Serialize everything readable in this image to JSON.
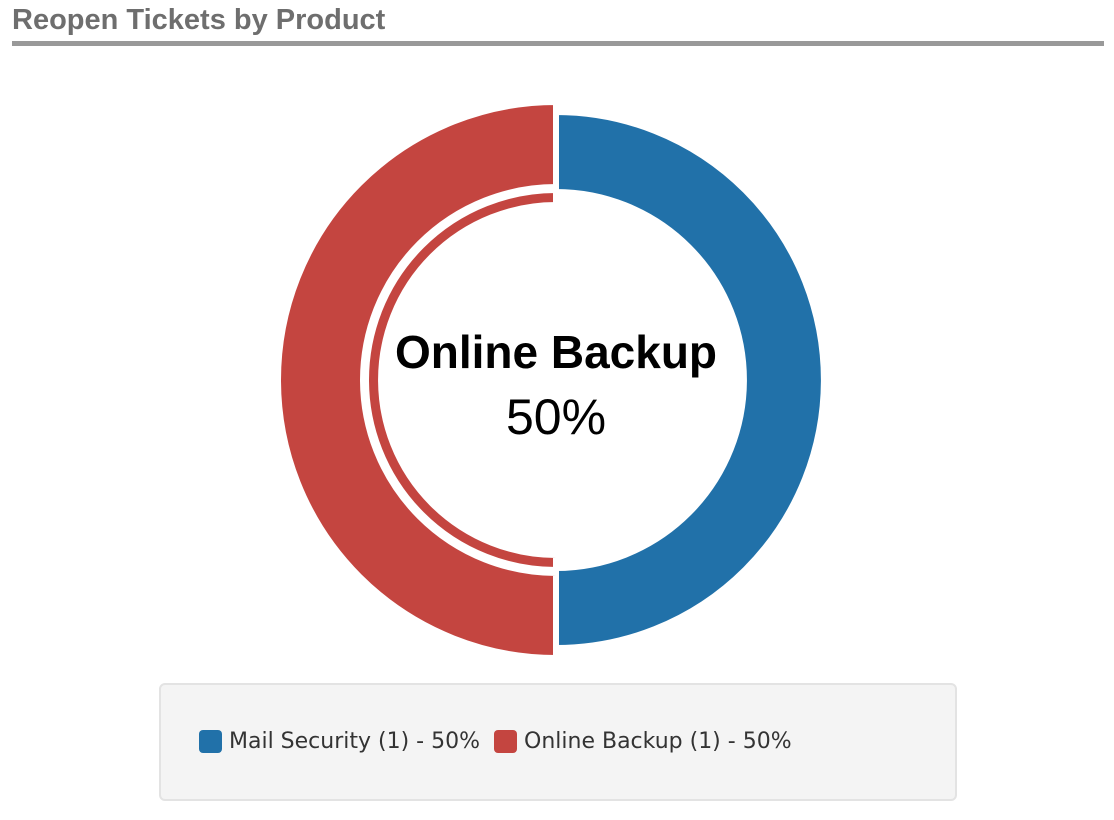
{
  "panel": {
    "title": "Reopen Tickets by Product"
  },
  "chart_data": {
    "type": "pie",
    "variant": "donut",
    "series": [
      {
        "name": "Mail Security",
        "count": 1,
        "value": 50,
        "color": "#2171a9",
        "legend_label": "Mail Security (1) - 50%"
      },
      {
        "name": "Online Backup",
        "count": 1,
        "value": 50,
        "color": "#c44540",
        "legend_label": "Online Backup (1) - 50%"
      }
    ],
    "highlighted": "Online Backup",
    "center_label": {
      "name": "Online Backup",
      "value": "50%"
    },
    "legend_placement": "bottom"
  }
}
